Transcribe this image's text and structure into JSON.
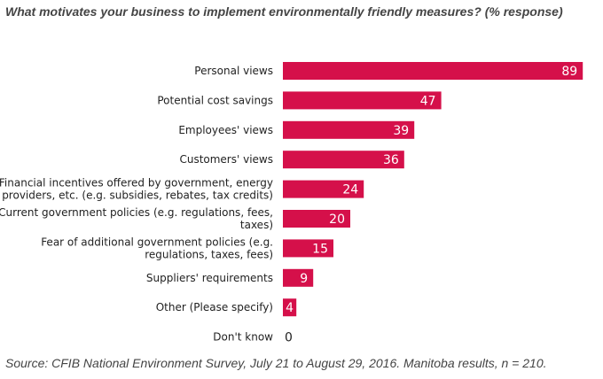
{
  "header": {
    "title": "What motivates your business to implement environmentally friendly measures? (% response)"
  },
  "footer": {
    "source": "Source: CFIB National Environment Survey, July 21 to August 29, 2016. Manitoba results, n = 210."
  },
  "chart_data": {
    "type": "bar",
    "orientation": "horizontal",
    "categories": [
      [
        "Personal views"
      ],
      [
        "Potential cost savings"
      ],
      [
        "Employees' views"
      ],
      [
        "Customers' views"
      ],
      [
        "Financial incentives offered by government, energy",
        "providers, etc. (e.g. subsidies, rebates, tax credits)"
      ],
      [
        "Current government policies (e.g. regulations, fees,",
        "taxes)"
      ],
      [
        "Fear of additional government policies (e.g.",
        "regulations, taxes, fees)"
      ],
      [
        "Suppliers' requirements"
      ],
      [
        "Other (Please specify)"
      ],
      [
        "Don't know"
      ]
    ],
    "values": [
      89,
      47,
      39,
      36,
      24,
      20,
      15,
      9,
      4,
      0
    ],
    "xlim": [
      0,
      100
    ],
    "grid": false,
    "bar_color": "#d5104a"
  }
}
